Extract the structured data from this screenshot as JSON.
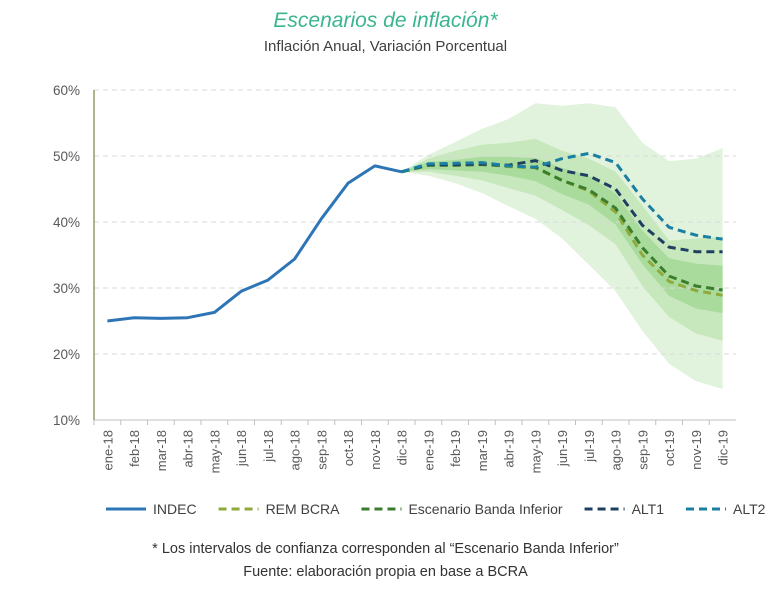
{
  "chart_data": {
    "type": "line",
    "title": "Escenarios de inflación*",
    "subtitle": "Inflación Anual, Variación Porcentual",
    "title_color": "#3bb58f",
    "categories": [
      "ene-18",
      "feb-18",
      "mar-18",
      "abr-18",
      "may-18",
      "jun-18",
      "jul-18",
      "ago-18",
      "sep-18",
      "oct-18",
      "nov-18",
      "dic-18",
      "ene-19",
      "feb-19",
      "mar-19",
      "abr-19",
      "may-19",
      "jun-19",
      "jul-19",
      "ago-19",
      "sep-19",
      "oct-19",
      "nov-19",
      "dic-19"
    ],
    "y_ticks": [
      "10%",
      "20%",
      "30%",
      "40%",
      "50%",
      "60%"
    ],
    "ylim": [
      10,
      60
    ],
    "grid": true,
    "legend_position": "bottom",
    "series": [
      {
        "name": "INDEC",
        "color": "#2e75b6",
        "dash": "solid",
        "values": [
          25.0,
          25.5,
          25.4,
          25.5,
          26.3,
          29.5,
          31.2,
          34.4,
          40.5,
          45.9,
          48.5,
          47.6,
          null,
          null,
          null,
          null,
          null,
          null,
          null,
          null,
          null,
          null,
          null,
          null
        ]
      },
      {
        "name": "REM BCRA",
        "color": "#8faa3c",
        "dash": "dash",
        "values": [
          null,
          null,
          null,
          null,
          null,
          null,
          null,
          null,
          null,
          null,
          null,
          47.6,
          48.6,
          48.7,
          48.8,
          48.4,
          48.2,
          46.3,
          44.7,
          41.5,
          35.0,
          31.0,
          29.6,
          28.9
        ]
      },
      {
        "name": "Escenario Banda Inferior",
        "color": "#3a7d2c",
        "dash": "dash",
        "values": [
          null,
          null,
          null,
          null,
          null,
          null,
          null,
          null,
          null,
          null,
          null,
          47.6,
          48.6,
          48.6,
          48.7,
          48.5,
          48.3,
          46.3,
          44.9,
          42.1,
          36.1,
          31.8,
          30.3,
          29.7
        ]
      },
      {
        "name": "ALT1",
        "color": "#1f3f62",
        "dash": "dash",
        "values": [
          null,
          null,
          null,
          null,
          null,
          null,
          null,
          null,
          null,
          null,
          null,
          47.6,
          48.7,
          48.7,
          48.8,
          48.6,
          49.3,
          47.8,
          47.0,
          45.0,
          39.5,
          36.2,
          35.5,
          35.5
        ]
      },
      {
        "name": "ALT2",
        "color": "#1a7fa3",
        "dash": "dash",
        "values": [
          null,
          null,
          null,
          null,
          null,
          null,
          null,
          null,
          null,
          null,
          null,
          47.6,
          48.8,
          48.9,
          49.0,
          48.5,
          48.3,
          49.6,
          50.4,
          49.0,
          43.5,
          39.2,
          38.0,
          37.4
        ]
      }
    ],
    "confidence_bands": [
      {
        "color": "#e1f3dc",
        "lower": [
          null,
          null,
          null,
          null,
          null,
          null,
          null,
          null,
          null,
          null,
          null,
          47.6,
          47.0,
          45.9,
          44.4,
          42.4,
          40.5,
          37.5,
          33.5,
          29.5,
          23.5,
          18.5,
          15.9,
          14.7
        ],
        "upper": [
          null,
          null,
          null,
          null,
          null,
          null,
          null,
          null,
          null,
          null,
          null,
          47.6,
          50.2,
          52.1,
          54.1,
          55.6,
          58.0,
          57.6,
          58.0,
          57.4,
          52.0,
          49.2,
          49.6,
          51.2
        ]
      },
      {
        "color": "#c7e8bd",
        "lower": [
          null,
          null,
          null,
          null,
          null,
          null,
          null,
          null,
          null,
          null,
          null,
          47.6,
          47.6,
          47.0,
          46.3,
          45.1,
          44.0,
          41.8,
          39.5,
          36.6,
          30.3,
          25.6,
          23.1,
          22.0
        ],
        "upper": [
          null,
          null,
          null,
          null,
          null,
          null,
          null,
          null,
          null,
          null,
          null,
          47.6,
          49.6,
          50.8,
          51.7,
          52.0,
          52.6,
          50.8,
          49.6,
          47.6,
          42.5,
          37.2,
          37.5,
          37.8
        ]
      },
      {
        "color": "#a9dc9c",
        "lower": [
          null,
          null,
          null,
          null,
          null,
          null,
          null,
          null,
          null,
          null,
          null,
          47.6,
          48.0,
          47.8,
          47.6,
          47.0,
          46.2,
          44.2,
          42.6,
          39.6,
          33.6,
          28.8,
          26.9,
          26.2
        ],
        "upper": [
          null,
          null,
          null,
          null,
          null,
          null,
          null,
          null,
          null,
          null,
          null,
          47.6,
          49.1,
          49.4,
          49.9,
          49.9,
          49.7,
          48.2,
          47.0,
          44.3,
          38.7,
          34.5,
          33.7,
          33.4
        ]
      }
    ]
  },
  "footnotes": {
    "line1": "* Los intervalos de confianza corresponden al “Escenario Banda Inferior”",
    "line2": "Fuente: elaboración propia en base a BCRA"
  },
  "colors": {
    "axis": "#7f7f3f",
    "grid": "#d9d9d9",
    "tick_text": "#595959"
  }
}
